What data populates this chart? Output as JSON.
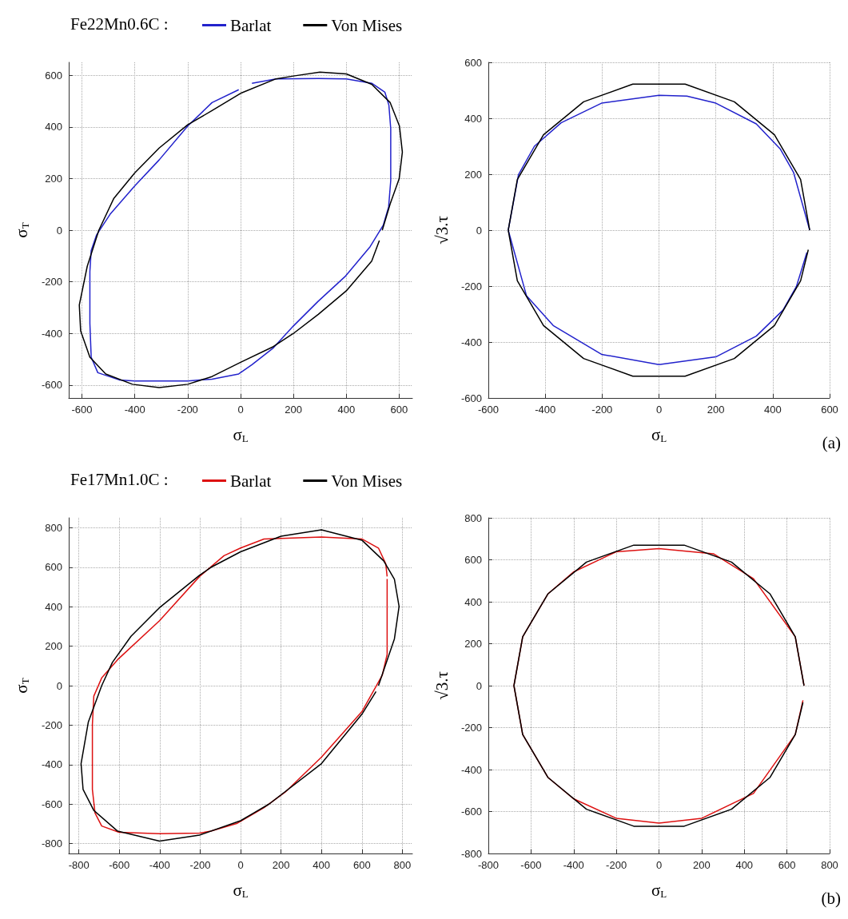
{
  "chart_data": [
    {
      "type": "line",
      "title": "Fe22Mn0.6C :",
      "xlabel": "σ$_{L}$",
      "ylabel": "σ$_{T}$",
      "legend": "top",
      "grid": true,
      "marker": "none",
      "xlim": [
        -650,
        650
      ],
      "ylim": [
        -650,
        650
      ],
      "xticks": [
        -600,
        -400,
        -200,
        0,
        200,
        400,
        600
      ],
      "yticks": [
        -600,
        -400,
        -200,
        0,
        200,
        400,
        600
      ],
      "series": [
        {
          "name": "Barlat",
          "color": "#2222cc",
          "x": [
            -7,
            -108,
            -200,
            -308,
            -400,
            -494,
            -545,
            -565,
            -570,
            -570,
            -565,
            -540,
            -459,
            -400,
            -200,
            -108,
            -7,
            43,
            124,
            200,
            294,
            395,
            490,
            540,
            560,
            568,
            568,
            561,
            546,
            496,
            400,
            294,
            134,
            43
          ],
          "values": [
            544,
            494,
            403,
            272,
            172,
            61,
            -19,
            -79,
            -160,
            -361,
            -492,
            -552,
            -580,
            -584,
            -584,
            -577,
            -557,
            -521,
            -456,
            -371,
            -275,
            -180,
            -64,
            20,
            90,
            192,
            393,
            484,
            534,
            569,
            586,
            587,
            586,
            569
          ]
        },
        {
          "name": "Von Mises",
          "color": "#000000",
          "x": [
            536,
            566,
            600,
            612,
            601,
            566,
            496,
            400,
            300,
            200,
            134,
            0,
            -108,
            -200,
            -308,
            -400,
            -480,
            -536,
            -580,
            -610,
            -605,
            -570,
            -510,
            -409,
            -308,
            -200,
            -108,
            0,
            124,
            200,
            294,
            400,
            496,
            525
          ],
          "values": [
            0,
            102,
            200,
            302,
            403,
            494,
            565,
            605,
            612,
            597,
            586,
            530,
            463,
            408,
            318,
            222,
            122,
            0,
            -140,
            -290,
            -390,
            -492,
            -557,
            -597,
            -610,
            -597,
            -567,
            -512,
            -451,
            -400,
            -326,
            -235,
            -120,
            -40
          ]
        }
      ]
    },
    {
      "type": "line",
      "xlabel": "σ$_{L}$",
      "ylabel": "√3.τ",
      "legend": false,
      "grid": true,
      "marker": "none",
      "xlim": [
        -600,
        600
      ],
      "ylim": [
        -600,
        600
      ],
      "xticks": [
        -600,
        -400,
        -200,
        0,
        200,
        400,
        600
      ],
      "yticks": [
        -600,
        -400,
        -200,
        0,
        200,
        400,
        600
      ],
      "annotations": [
        "(a)"
      ],
      "series": [
        {
          "color": "#2222cc",
          "x": [
            530,
            473,
            426,
            342,
            200,
            98,
            0,
            -202,
            -344,
            -438,
            -494,
            -530,
            -466,
            -372,
            -202,
            0,
            200,
            342,
            436,
            483,
            520
          ],
          "values": [
            0,
            207,
            291,
            380,
            454,
            479,
            482,
            454,
            384,
            300,
            198,
            0,
            -234,
            -341,
            -444,
            -481,
            -453,
            -379,
            -286,
            -202,
            -80
          ]
        },
        {
          "color": "#000000",
          "x": [
            530,
            498,
            406,
            265,
            92,
            -92,
            -265,
            -406,
            -498,
            -530,
            -498,
            -406,
            -265,
            -92,
            92,
            265,
            406,
            498,
            525
          ],
          "values": [
            0,
            181,
            341,
            459,
            522,
            522,
            459,
            341,
            181,
            0,
            -181,
            -341,
            -459,
            -522,
            -522,
            -459,
            -341,
            -181,
            -70
          ]
        }
      ]
    },
    {
      "type": "line",
      "title": "Fe17Mn1.0C :",
      "xlabel": "σ$_{L}$",
      "ylabel": "σ$_{T}$",
      "legend": "top",
      "grid": true,
      "marker": "none",
      "xlim": [
        -850,
        850
      ],
      "ylim": [
        -850,
        850
      ],
      "xticks": [
        -800,
        -600,
        -400,
        -200,
        0,
        200,
        400,
        600,
        800
      ],
      "yticks": [
        -800,
        -600,
        -400,
        -200,
        0,
        200,
        400,
        600,
        800
      ],
      "series": [
        {
          "name": "Barlat",
          "color": "#dd1111",
          "x": [
            725,
            718,
            682,
            600,
            400,
            116,
            0,
            -82,
            -203,
            -401,
            -608,
            -687,
            -726,
            -733,
            -733,
            -720,
            -687,
            -601,
            -401,
            -203,
            -147,
            -16,
            116,
            221,
            400,
            600,
            701,
            725,
            725,
            725
          ],
          "values": [
            553,
            618,
            697,
            743,
            753,
            743,
            697,
            658,
            553,
            329,
            132,
            39,
            -53,
            -197,
            -526,
            -645,
            -711,
            -743,
            -750,
            -747,
            -737,
            -697,
            -618,
            -539,
            -362,
            -132,
            53,
            158,
            350,
            540
          ]
        },
        {
          "name": "Von Mises",
          "color": "#000000",
          "x": [
            682,
            761,
            784,
            761,
            708,
            600,
            400,
            200,
            0,
            -147,
            -203,
            -401,
            -542,
            -634,
            -687,
            -753,
            -789,
            -779,
            -726,
            -608,
            -401,
            -203,
            0,
            142,
            400,
            600,
            670
          ],
          "values": [
            0,
            237,
            401,
            539,
            632,
            737,
            789,
            757,
            678,
            599,
            559,
            395,
            250,
            118,
            0,
            -184,
            -395,
            -526,
            -632,
            -737,
            -787,
            -757,
            -684,
            -599,
            -395,
            -145,
            -30
          ]
        }
      ]
    },
    {
      "type": "line",
      "xlabel": "σ$_{L}$",
      "ylabel": "√3.τ",
      "legend": false,
      "grid": true,
      "marker": "none",
      "xlim": [
        -800,
        800
      ],
      "ylim": [
        -800,
        800
      ],
      "xticks": [
        -800,
        -600,
        -400,
        -200,
        0,
        200,
        400,
        600,
        800
      ],
      "yticks": [
        -800,
        -600,
        -400,
        -200,
        0,
        200,
        400,
        600,
        800
      ],
      "annotations": [
        "(b)"
      ],
      "series": [
        {
          "color": "#dd1111",
          "x": [
            680,
            639,
            443,
            255,
            0,
            -201,
            -401,
            -521,
            -639,
            -680,
            -639,
            -521,
            -401,
            -201,
            0,
            201,
            443,
            639,
            675
          ],
          "values": [
            0,
            233,
            510,
            629,
            653,
            638,
            542,
            437,
            233,
            0,
            -233,
            -437,
            -539,
            -632,
            -655,
            -632,
            -514,
            -233,
            -70
          ]
        },
        {
          "color": "#000000",
          "x": [
            680,
            639,
            521,
            340,
            118,
            -118,
            -340,
            -521,
            -639,
            -680,
            -639,
            -521,
            -340,
            -118,
            118,
            340,
            521,
            639,
            675
          ],
          "values": [
            0,
            233,
            437,
            589,
            670,
            670,
            589,
            437,
            233,
            0,
            -233,
            -437,
            -589,
            -670,
            -670,
            -589,
            -437,
            -233,
            -80
          ]
        }
      ]
    }
  ]
}
